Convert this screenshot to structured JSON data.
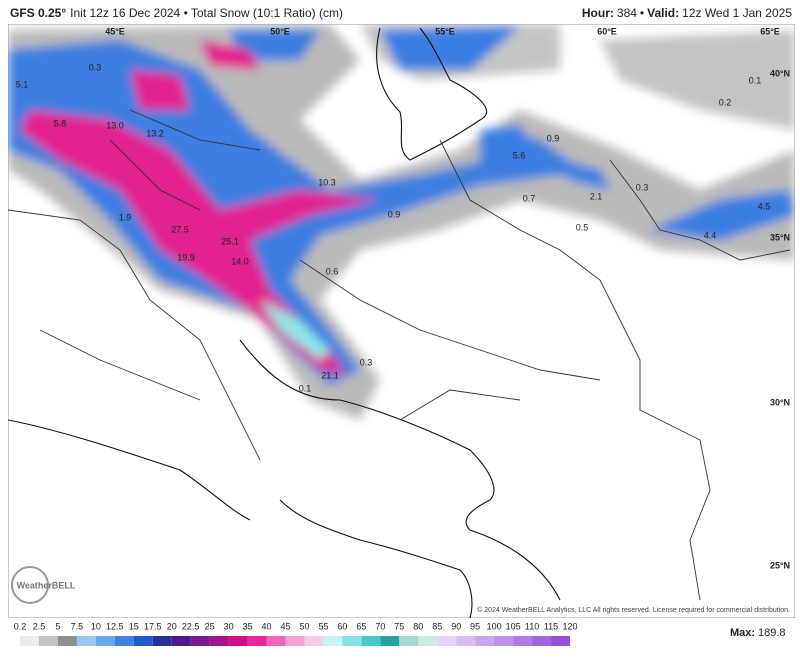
{
  "header": {
    "model": "GFS 0.25°",
    "description": "Init 12z 16 Dec 2024 • Total Snow (10:1 Ratio) (cm)",
    "hour_label": "Hour:",
    "hour": "384",
    "separator": "•",
    "valid_label": "Valid:",
    "valid": "12z Wed 1 Jan 2025"
  },
  "map": {
    "longitude_labels": [
      "45°E",
      "50°E",
      "55°E",
      "60°E",
      "65°E"
    ],
    "latitude_labels": [
      "40°N",
      "35°N",
      "30°N",
      "25°N"
    ],
    "snow_labels": [
      "0.3",
      "5.1",
      "5.8",
      "13.0",
      "13.2",
      "1.9",
      "27.5",
      "19.9",
      "25.1",
      "14.0",
      "10.3",
      "0.9",
      "0.6",
      "0.3",
      "21.1",
      "0.1",
      "5.6",
      "0.9",
      "0.7",
      "0.5",
      "2.1",
      "0.3",
      "4.5",
      "4.4",
      "0.1",
      "0.2"
    ]
  },
  "colorbar": {
    "ticks": [
      "0.2",
      "2.5",
      "5",
      "7.5",
      "10",
      "12.5",
      "15",
      "17.5",
      "20",
      "22.5",
      "25",
      "30",
      "35",
      "40",
      "45",
      "50",
      "55",
      "60",
      "65",
      "70",
      "75",
      "80",
      "85",
      "90",
      "95",
      "100",
      "105",
      "110",
      "115",
      "120"
    ],
    "colors": [
      "#ececec",
      "#c4c4c4",
      "#8e8e8e",
      "#9cc6f2",
      "#6aa6ec",
      "#3f82e4",
      "#2459cc",
      "#27309c",
      "#4b1c8c",
      "#7a1990",
      "#a4148f",
      "#cc108a",
      "#e8289a",
      "#f266b6",
      "#f7a4d0",
      "#f3cde4",
      "#c6f2f2",
      "#86e2e2",
      "#48caca",
      "#25a4a4",
      "#a6dad2",
      "#cfe8e2",
      "#e3d4f4",
      "#d6bff0",
      "#c8a8ec",
      "#bb92e8",
      "#ae7ce4",
      "#a266de",
      "#9650d8"
    ],
    "max_label": "Max:",
    "max": "189.8"
  },
  "footer": {
    "copyright": "© 2024 WeatherBELL Analytics, LLC All rights reserved. License required for commercial distribution.",
    "logo": "WeatherBELL"
  }
}
